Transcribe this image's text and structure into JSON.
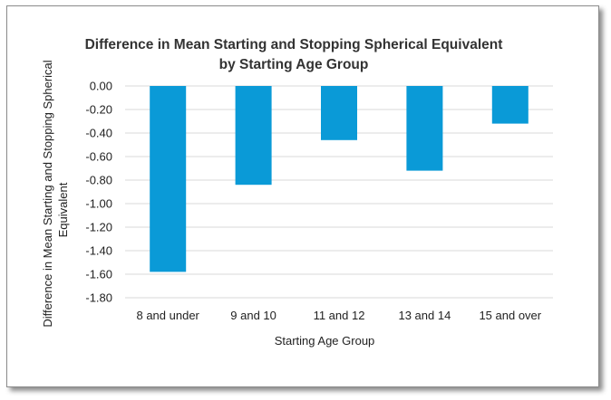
{
  "chart_data": {
    "type": "bar",
    "title_line1": "Difference in Mean Starting and Stopping Spherical Equivalent",
    "title_line2": "by Starting Age Group",
    "xlabel": "Starting Age Group",
    "ylabel_line1": "Difference in Mean Starting and Stopping Spherical",
    "ylabel_line2": "Equivalent",
    "categories": [
      "8 and under",
      "9 and 10",
      "11 and 12",
      "13 and 14",
      "15 and over"
    ],
    "values": [
      -1.58,
      -0.84,
      -0.46,
      -0.72,
      -0.32
    ],
    "ylim": [
      -1.8,
      0
    ],
    "yticks": [
      "0.00",
      "-0.20",
      "-0.40",
      "-0.60",
      "-0.80",
      "-1.00",
      "-1.20",
      "-1.40",
      "-1.60",
      "-1.80"
    ],
    "bar_color": "#0a9ad7",
    "grid": true
  }
}
